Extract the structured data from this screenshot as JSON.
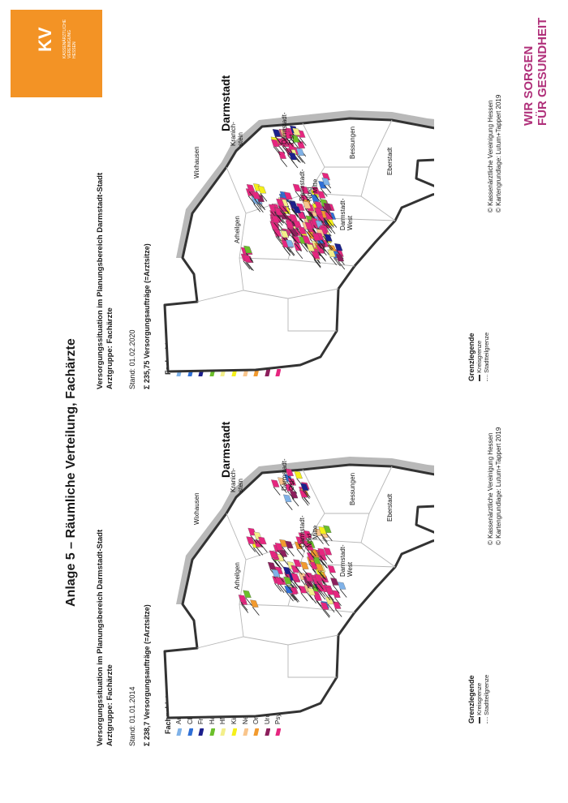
{
  "logo": {
    "mark": "KV",
    "text": "KASSENÄRZTLICHE VEREINIGUNG HESSEN"
  },
  "slogan": [
    "WIR SORGEN",
    "FÜR GESUNDHEIT"
  ],
  "title": "Anlage 5 – Räumliche Verteilung, Fachärzte",
  "panels": [
    {
      "heading": "Versorgungssituation im Planungsbereich Darmstadt-Stadt",
      "group": "Arztgruppe: Fachärzte",
      "date": "Stand: 01.01.2014",
      "sum": "Σ 238,7 Versorgungsaufträge (=Arztsitze)"
    },
    {
      "heading": "Versorgungssituation im Planungsbereich Darmstadt-Stadt",
      "group": "Arztgruppe: Fachärzte",
      "date": "Stand: 01.02.2020",
      "sum": "Σ 235,75 Versorgungsaufträge (=Arztsitze)"
    }
  ],
  "legend": {
    "title": "Fachgebiet",
    "items": [
      {
        "label": "Augenärzte",
        "color": "#7fb2e8"
      },
      {
        "label": "Chirurgen",
        "color": "#2f6fd6"
      },
      {
        "label": "Frauenärzte",
        "color": "#1b1f8c"
      },
      {
        "label": "Hautärzte",
        "color": "#6bbf2a"
      },
      {
        "label": "HNO-Ärzte",
        "color": "#f3ef8a"
      },
      {
        "label": "Kinderärzte",
        "color": "#f5f01a"
      },
      {
        "label": "Nervenärzte",
        "color": "#f9c58c"
      },
      {
        "label": "Orthopäden",
        "color": "#f29a2e"
      },
      {
        "label": "Urologen",
        "color": "#8c1f5c"
      },
      {
        "label": "Psychotherapeuten",
        "color": "#e6267f"
      }
    ]
  },
  "borders": {
    "title": "Grenzlegende",
    "kreis": "Kreisgrenze",
    "stadt": "Stadtteilgrenze"
  },
  "copyright": [
    "© Kassenärztliche Vereinigung Hessen",
    "© Kartengrundlage: Lutum+Tappert 2019"
  ],
  "districts": {
    "city": "Darmstadt",
    "wixhausen": "Wixhausen",
    "kranichstein": [
      "Kranich-",
      "stein"
    ],
    "ost": [
      "Darmstadt-",
      "Ost"
    ],
    "arheilgen": "Arheilgen",
    "nord": [
      "Darmstadt-",
      "Nord"
    ],
    "mitte": "Mitte",
    "bessungen": "Bessungen",
    "west": [
      "Darmstadt-",
      "West"
    ],
    "eberstadt": "Eberstadt"
  }
}
